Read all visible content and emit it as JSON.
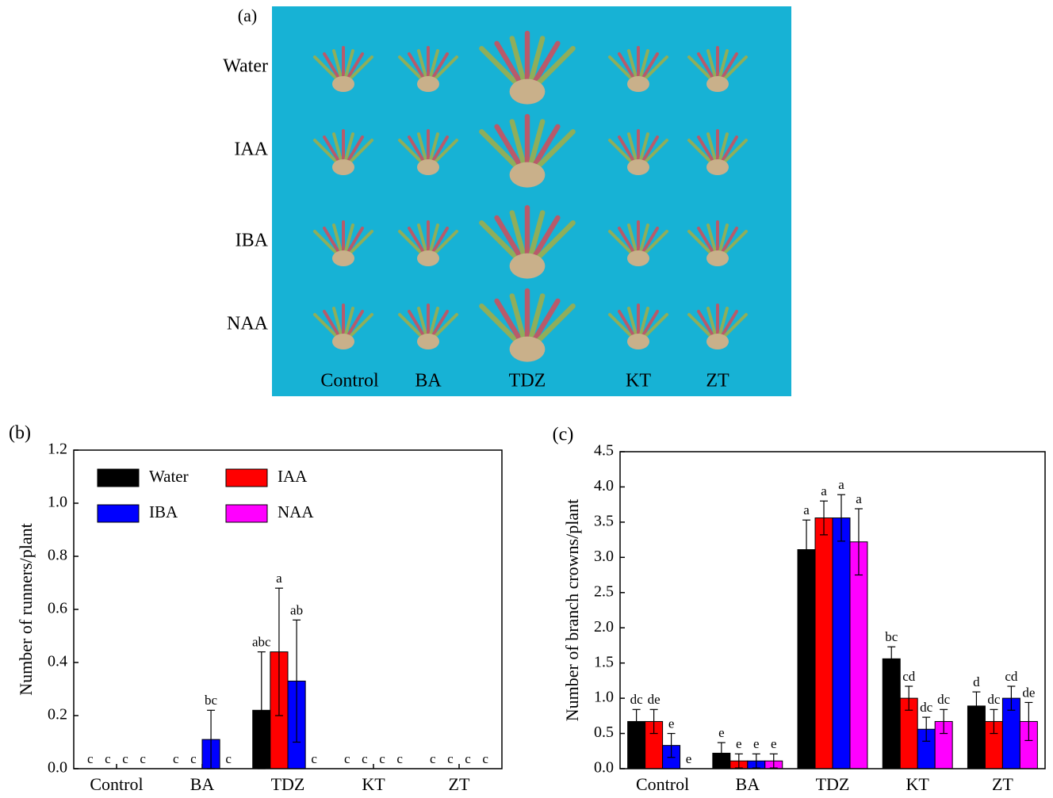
{
  "photo": {
    "panel_label": "(a)",
    "rows": [
      "Water",
      "IAA",
      "IBA",
      "NAA"
    ],
    "columns": [
      "Control",
      "BA",
      "TDZ",
      "KT",
      "ZT"
    ]
  },
  "chart_data": [
    {
      "type": "bar",
      "panel_label": "(b)",
      "y_label": "Number of runners/plant",
      "categories": [
        "Control",
        "BA",
        "TDZ",
        "KT",
        "ZT"
      ],
      "ylim": [
        0,
        1.2
      ],
      "yticks": [
        {
          "value": 0,
          "label": "0.0"
        },
        {
          "value": 0.2,
          "label": "0.2"
        },
        {
          "value": 0.4,
          "label": "0.4"
        },
        {
          "value": 0.6,
          "label": "0.6"
        },
        {
          "value": 0.8,
          "label": "0.8"
        },
        {
          "value": 1,
          "label": "1.0"
        },
        {
          "value": 1.2,
          "label": "1.2"
        }
      ],
      "legend": "top-left",
      "series": [
        {
          "name": "Water",
          "color": "#000000",
          "values": [
            0,
            0,
            0.22,
            0,
            0
          ],
          "errors": [
            null,
            null,
            0.22,
            null,
            null
          ],
          "letters": [
            "c",
            "c",
            "abc",
            "c",
            "c"
          ]
        },
        {
          "name": "IAA",
          "color": "#ff0000",
          "values": [
            0,
            0,
            0.44,
            0,
            0
          ],
          "errors": [
            null,
            null,
            0.24,
            null,
            null
          ],
          "letters": [
            "c",
            "c",
            "a",
            "c",
            "c"
          ]
        },
        {
          "name": "IBA",
          "color": "#0000ff",
          "values": [
            0,
            0.11,
            0.33,
            0,
            0
          ],
          "errors": [
            null,
            0.11,
            0.23,
            null,
            null
          ],
          "letters": [
            "c",
            "bc",
            "ab",
            "c",
            "c"
          ]
        },
        {
          "name": "NAA",
          "color": "#ff00ff",
          "values": [
            0,
            0,
            0,
            0,
            0
          ],
          "errors": [
            null,
            null,
            null,
            null,
            null
          ],
          "letters": [
            "c",
            "c",
            "c",
            "c",
            "c"
          ]
        }
      ]
    },
    {
      "type": "bar",
      "panel_label": "(c)",
      "y_label": "Number of branch crowns/plant",
      "categories": [
        "Control",
        "BA",
        "TDZ",
        "KT",
        "ZT"
      ],
      "ylim": [
        0,
        4.5
      ],
      "yticks": [
        {
          "value": 0,
          "label": "0.0"
        },
        {
          "value": 0.5,
          "label": "0.5"
        },
        {
          "value": 1,
          "label": "1.0"
        },
        {
          "value": 1.5,
          "label": "1.5"
        },
        {
          "value": 2,
          "label": "2.0"
        },
        {
          "value": 2.5,
          "label": "2.5"
        },
        {
          "value": 3,
          "label": "3.0"
        },
        {
          "value": 3.5,
          "label": "3.5"
        },
        {
          "value": 4,
          "label": "4.0"
        },
        {
          "value": 4.5,
          "label": "4.5"
        }
      ],
      "series": [
        {
          "name": "Water",
          "color": "#000000",
          "values": [
            0.67,
            0.22,
            3.11,
            1.56,
            0.89
          ],
          "errors": [
            0.17,
            0.15,
            0.42,
            0.17,
            0.2
          ],
          "letters": [
            "dc",
            "e",
            "a",
            "bc",
            "d"
          ]
        },
        {
          "name": "IAA",
          "color": "#ff0000",
          "values": [
            0.67,
            0.11,
            3.56,
            1.0,
            0.67
          ],
          "errors": [
            0.17,
            0.1,
            0.24,
            0.17,
            0.17
          ],
          "letters": [
            "de",
            "e",
            "a",
            "cd",
            "dc"
          ]
        },
        {
          "name": "IBA",
          "color": "#0000ff",
          "values": [
            0.33,
            0.11,
            3.56,
            0.56,
            1.0
          ],
          "errors": [
            0.17,
            0.1,
            0.33,
            0.17,
            0.17
          ],
          "letters": [
            "e",
            "e",
            "a",
            "dc",
            "cd"
          ]
        },
        {
          "name": "NAA",
          "color": "#ff00ff",
          "values": [
            0,
            0.11,
            3.22,
            0.67,
            0.67
          ],
          "errors": [
            null,
            0.1,
            0.47,
            0.17,
            0.27
          ],
          "letters": [
            "e",
            "e",
            "a",
            "dc",
            "de"
          ]
        }
      ]
    }
  ]
}
